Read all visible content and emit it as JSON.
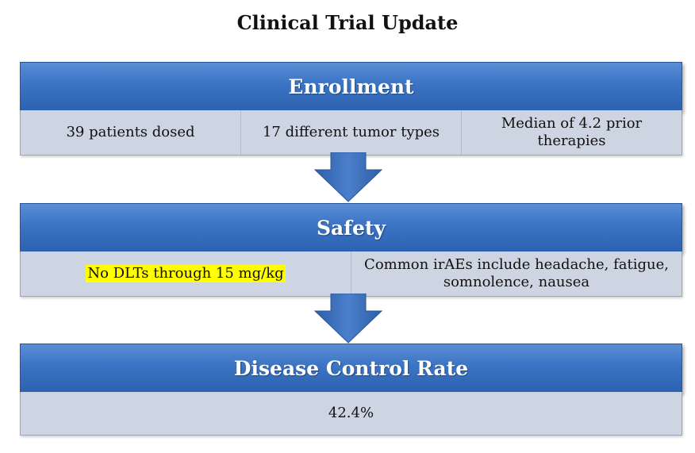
{
  "title": "Clinical Trial Update",
  "sections": [
    {
      "header": "Enrollment",
      "cells": [
        "39 patients dosed",
        "17 different tumor types",
        "Median of 4.2 prior therapies"
      ]
    },
    {
      "header": "Safety",
      "cells": [
        "No DLTs through 15 mg/kg",
        "Common irAEs include headache, fatigue, somnolence, nausea"
      ],
      "highlighted_cell": "No DLTs through 15 mg/kg"
    },
    {
      "header": "Disease Control Rate",
      "cells": [
        "42.4%"
      ]
    }
  ],
  "colors": {
    "header_blue": "#3b74c4",
    "row_gray": "#cdd4e2",
    "arrow_blue": "#3d6fb8",
    "highlight": "#ffff00"
  }
}
